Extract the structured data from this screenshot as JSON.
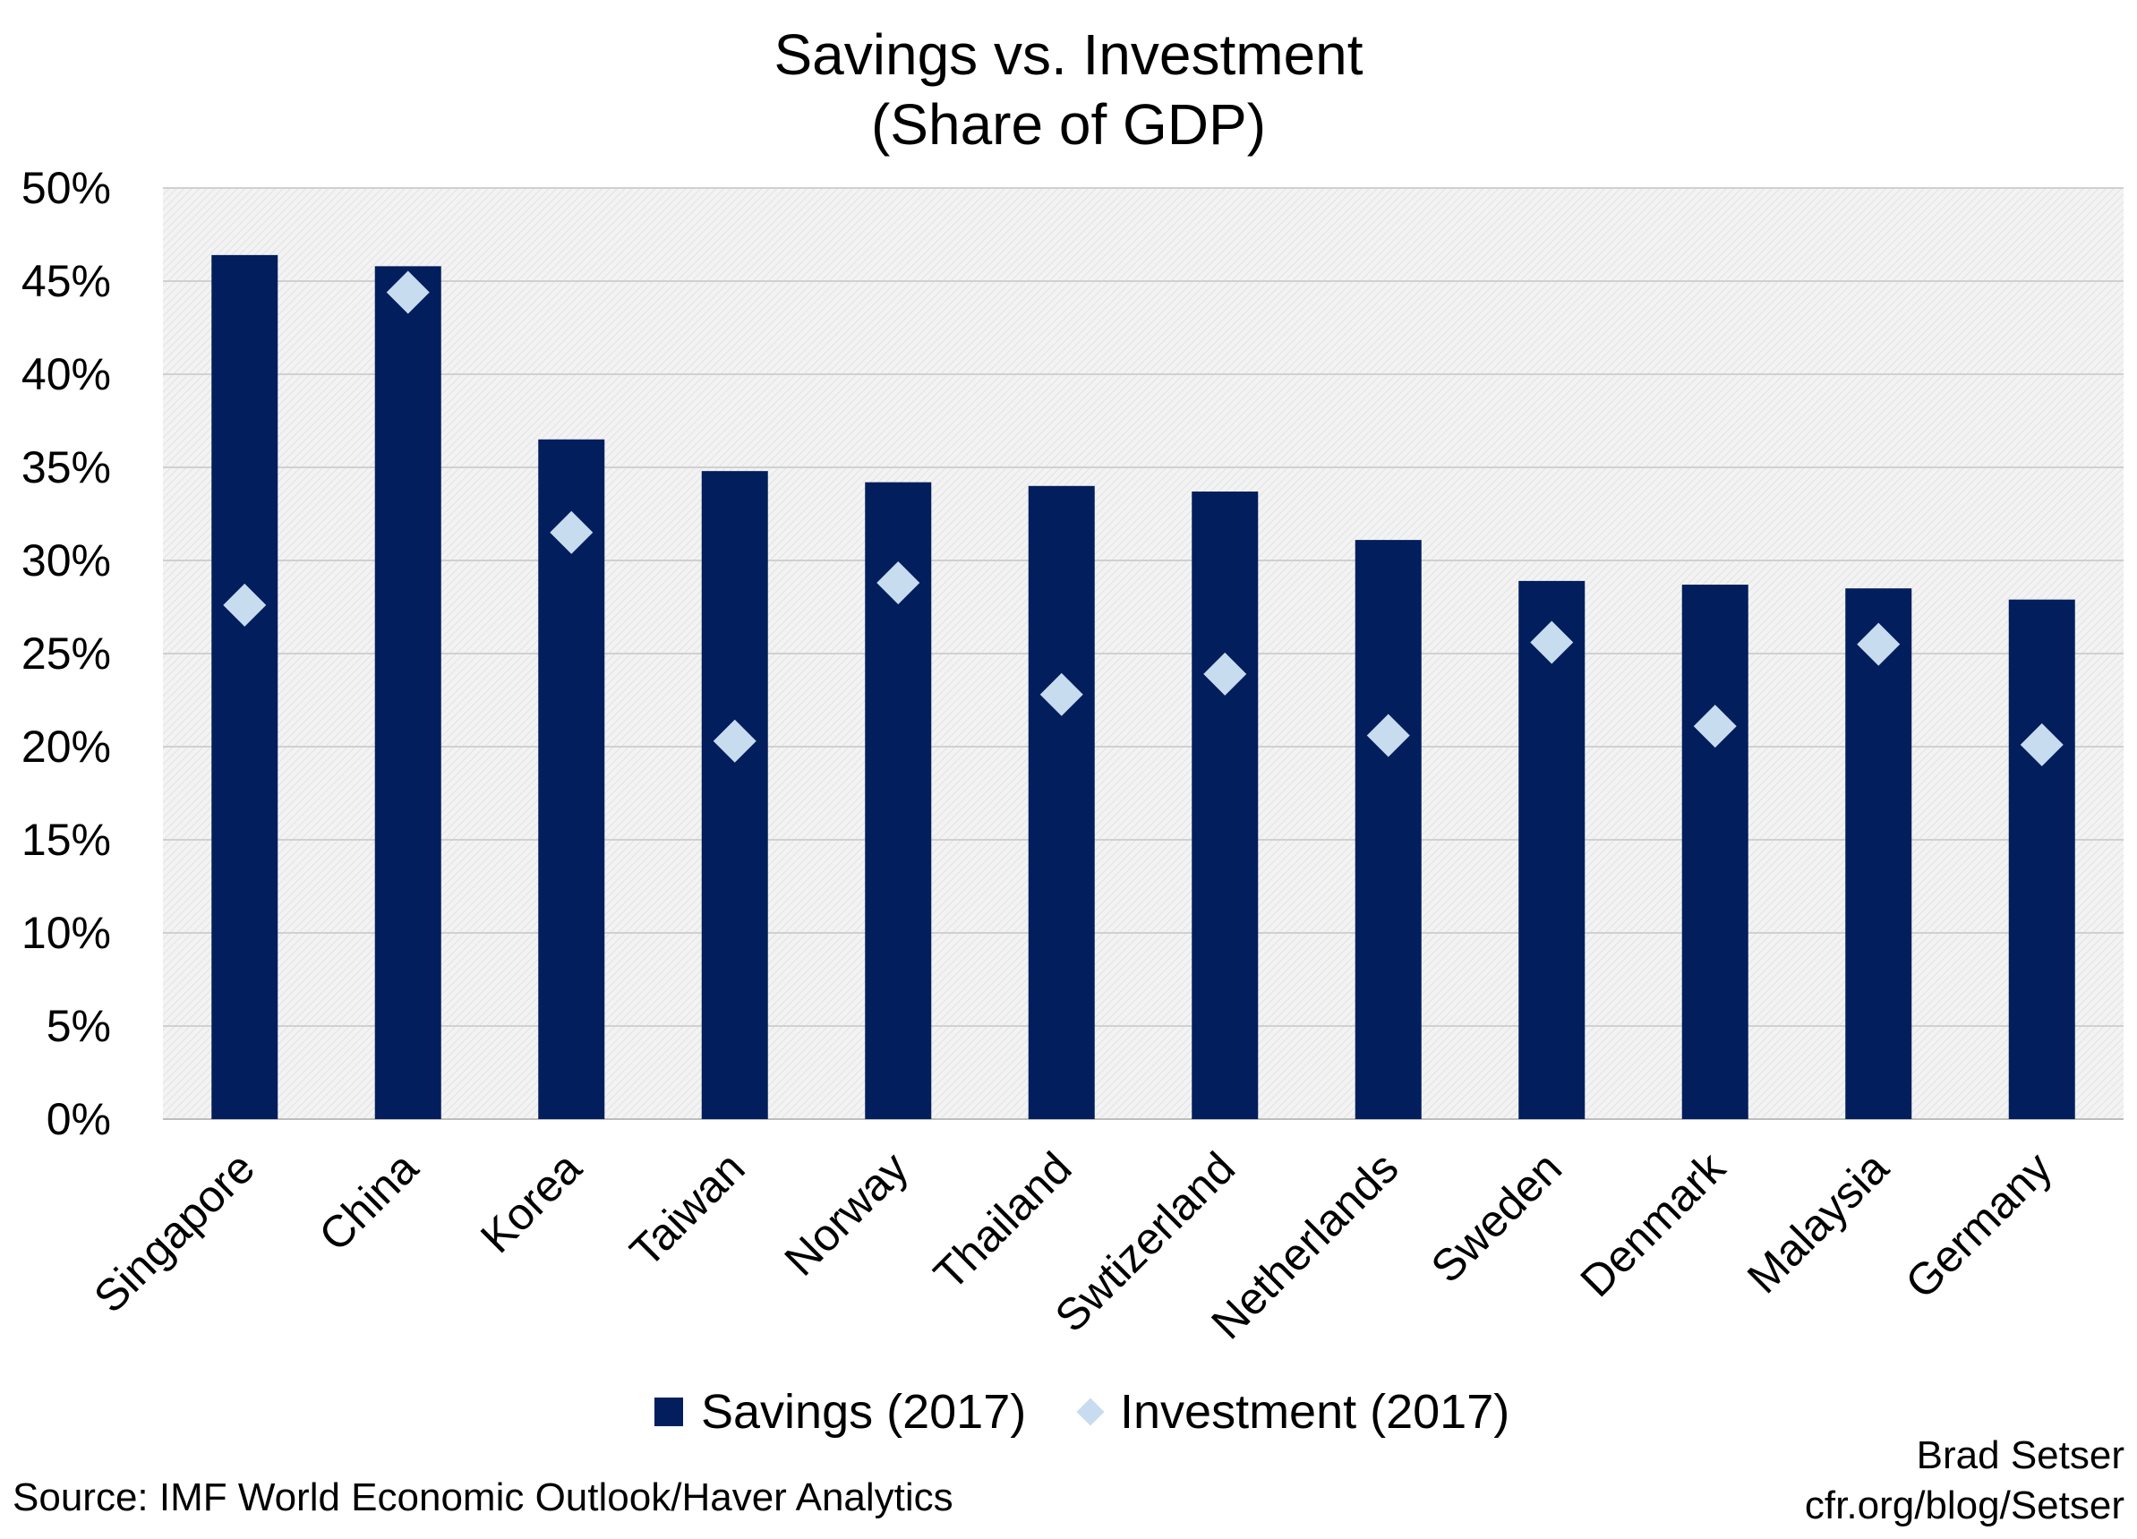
{
  "title_line1": "Savings vs. Investment",
  "title_line2": "(Share of GDP)",
  "source": "Source: IMF World Economic Outlook/Haver Analytics",
  "credit_line1": "Brad Setser",
  "credit_line2": "cfr.org/blog/Setser",
  "colors": {
    "savings": "#021e5c",
    "investment": "#c8dcf0",
    "plot_background": "#eeeeee",
    "gridline": "#d0d0d0"
  },
  "chart_data": {
    "type": "bar",
    "title": "Savings vs. Investment (Share of GDP)",
    "xlabel": "",
    "ylabel": "",
    "ylim": [
      0,
      50
    ],
    "yticks": [
      "0%",
      "5%",
      "10%",
      "15%",
      "20%",
      "25%",
      "30%",
      "35%",
      "40%",
      "45%",
      "50%"
    ],
    "grid": true,
    "legend_position": "bottom",
    "categories": [
      "Singapore",
      "China",
      "Korea",
      "Taiwan",
      "Norway",
      "Thailand",
      "Swtizerland",
      "Netherlands",
      "Sweden",
      "Denmark",
      "Malaysia",
      "Germany"
    ],
    "series": [
      {
        "name": "Savings (2017)",
        "mark": "bar",
        "color": "#021e5c",
        "values": [
          46.4,
          45.8,
          36.5,
          34.8,
          34.2,
          34.0,
          33.7,
          31.1,
          28.9,
          28.7,
          28.5,
          27.9
        ]
      },
      {
        "name": "Investment (2017)",
        "mark": "diamond",
        "color": "#c8dcf0",
        "values": [
          27.6,
          44.4,
          31.5,
          20.3,
          28.8,
          22.8,
          23.9,
          20.6,
          25.6,
          21.1,
          25.5,
          20.1
        ]
      }
    ]
  }
}
